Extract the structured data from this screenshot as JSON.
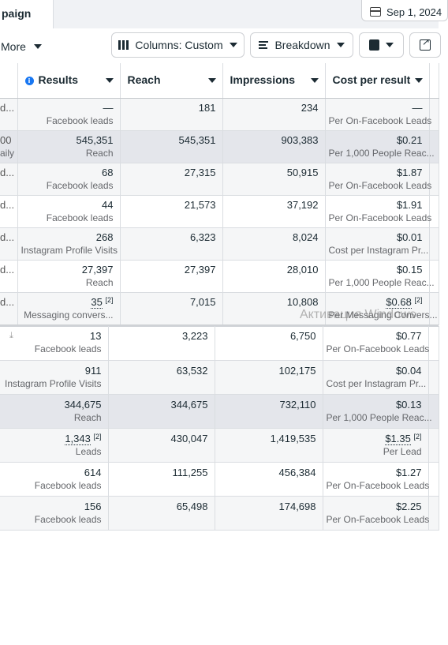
{
  "tab": {
    "label": "paign"
  },
  "date": {
    "label": "Sep 1, 2024"
  },
  "toolbar": {
    "more_label": "More",
    "columns_label": "Columns: Custom",
    "breakdown_label": "Breakdown"
  },
  "headers": {
    "results": "Results",
    "reach": "Reach",
    "impressions": "Impressions",
    "cost": "Cost per result"
  },
  "rows_top": [
    {
      "name": "d...",
      "name_sub": "",
      "result": "—",
      "result_sub": "Facebook leads",
      "reach": "181",
      "impressions": "234",
      "cost": "—",
      "cost_sub": "Per On-Facebook Leads"
    },
    {
      "name": "00",
      "name_sub": "aily",
      "result": "545,351",
      "result_sub": "Reach",
      "reach": "545,351",
      "impressions": "903,383",
      "cost": "$0.21",
      "cost_sub": "Per 1,000 People Reac..."
    },
    {
      "name": "d...",
      "name_sub": "",
      "result": "68",
      "result_sub": "Facebook leads",
      "reach": "27,315",
      "impressions": "50,915",
      "cost": "$1.87",
      "cost_sub": "Per On-Facebook Leads"
    },
    {
      "name": "d...",
      "name_sub": "",
      "result": "44",
      "result_sub": "Facebook leads",
      "reach": "21,573",
      "impressions": "37,192",
      "cost": "$1.91",
      "cost_sub": "Per On-Facebook Leads"
    },
    {
      "name": "d...",
      "name_sub": "",
      "result": "268",
      "result_sub": "Instagram Profile Visits",
      "reach": "6,323",
      "impressions": "8,024",
      "cost": "$0.01",
      "cost_sub": "Cost per Instagram Pr..."
    },
    {
      "name": "d...",
      "name_sub": "",
      "result": "27,397",
      "result_sub": "Reach",
      "reach": "27,397",
      "impressions": "28,010",
      "cost": "$0.15",
      "cost_sub": "Per 1,000 People Reac..."
    },
    {
      "name": "d...",
      "name_sub": "",
      "result": "35",
      "result_sup": "[2]",
      "result_sub": "Messaging convers...",
      "reach": "7,015",
      "impressions": "10,808",
      "cost": "$0.68",
      "cost_sup": "[2]",
      "cost_sub": "Per Messaging Convers..."
    }
  ],
  "rows_bottom": [
    {
      "result": "13",
      "result_sub": "Facebook leads",
      "reach": "3,223",
      "impressions": "6,750",
      "cost": "$0.77",
      "cost_sub": "Per On-Facebook Leads"
    },
    {
      "result": "911",
      "result_sub": "Instagram Profile Visits",
      "reach": "63,532",
      "impressions": "102,175",
      "cost": "$0.04",
      "cost_sub": "Cost per Instagram Pr..."
    },
    {
      "result": "344,675",
      "result_sub": "Reach",
      "reach": "344,675",
      "impressions": "732,110",
      "cost": "$0.13",
      "cost_sub": "Per 1,000 People Reac..."
    },
    {
      "result": "1,343",
      "result_sup": "[2]",
      "result_sub": "Leads",
      "reach": "430,047",
      "impressions": "1,419,535",
      "cost": "$1.35",
      "cost_sup": "[2]",
      "cost_sub": "Per Lead"
    },
    {
      "result": "614",
      "result_sub": "Facebook leads",
      "reach": "111,255",
      "impressions": "456,384",
      "cost": "$1.27",
      "cost_sub": "Per On-Facebook Leads"
    },
    {
      "result": "156",
      "result_sub": "Facebook leads",
      "reach": "65,498",
      "impressions": "174,698",
      "cost": "$2.25",
      "cost_sub": "Per On-Facebook Leads"
    }
  ],
  "watermark": "Активация Windows",
  "colors": {
    "highlight_row": "#e4e6eb",
    "info": "#1877f2"
  }
}
